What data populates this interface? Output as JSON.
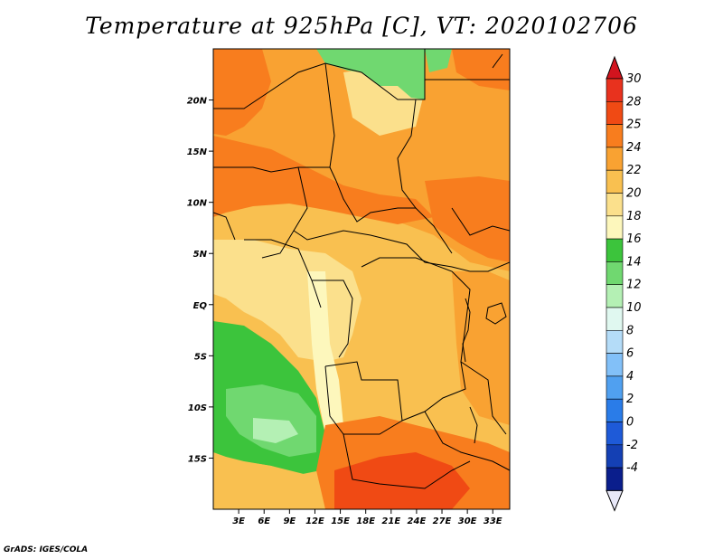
{
  "title": "Temperature at 925hPa [C], VT: 2020102706",
  "credit": "GrADS: IGES/COLA",
  "map": {
    "lon_range": [
      0,
      35
    ],
    "lat_range": [
      -20,
      25
    ],
    "lat_ticks": [
      {
        "value": 20,
        "label": "20N"
      },
      {
        "value": 15,
        "label": "15N"
      },
      {
        "value": 10,
        "label": "10N"
      },
      {
        "value": 5,
        "label": "5N"
      },
      {
        "value": 0,
        "label": "EQ"
      },
      {
        "value": -5,
        "label": "5S"
      },
      {
        "value": -10,
        "label": "10S"
      },
      {
        "value": -15,
        "label": "15S"
      }
    ],
    "lon_ticks": [
      {
        "value": 3,
        "label": "3E"
      },
      {
        "value": 6,
        "label": "6E"
      },
      {
        "value": 9,
        "label": "9E"
      },
      {
        "value": 12,
        "label": "12E"
      },
      {
        "value": 15,
        "label": "15E"
      },
      {
        "value": 18,
        "label": "18E"
      },
      {
        "value": 21,
        "label": "21E"
      },
      {
        "value": 24,
        "label": "24E"
      },
      {
        "value": 27,
        "label": "27E"
      },
      {
        "value": 30,
        "label": "30E"
      },
      {
        "value": 33,
        "label": "33E"
      }
    ]
  },
  "colorbar": {
    "levels": [
      {
        "label": "30",
        "color": "#e8321e"
      },
      {
        "label": "28",
        "color": "#f04a14"
      },
      {
        "label": "25",
        "color": "#f87d1e"
      },
      {
        "label": "24",
        "color": "#f9a232"
      },
      {
        "label": "22",
        "color": "#f9c050"
      },
      {
        "label": "20",
        "color": "#fbe08c"
      },
      {
        "label": "18",
        "color": "#fdf7bc"
      },
      {
        "label": "16",
        "color": "#3cc43c"
      },
      {
        "label": "14",
        "color": "#70d870"
      },
      {
        "label": "12",
        "color": "#b4f0b4"
      },
      {
        "label": "10",
        "color": "#e0f8f0"
      },
      {
        "label": "8",
        "color": "#b4dcf8"
      },
      {
        "label": "6",
        "color": "#82c0f8"
      },
      {
        "label": "4",
        "color": "#50a0f0"
      },
      {
        "label": "2",
        "color": "#2a7ce8"
      },
      {
        "label": "0",
        "color": "#1e5ad8"
      },
      {
        "label": "-2",
        "color": "#1440b4"
      },
      {
        "label": "-4",
        "color": "#0a1e8c"
      }
    ],
    "top_color": "#d2141e",
    "bottom_color": "#e8e8f8"
  }
}
